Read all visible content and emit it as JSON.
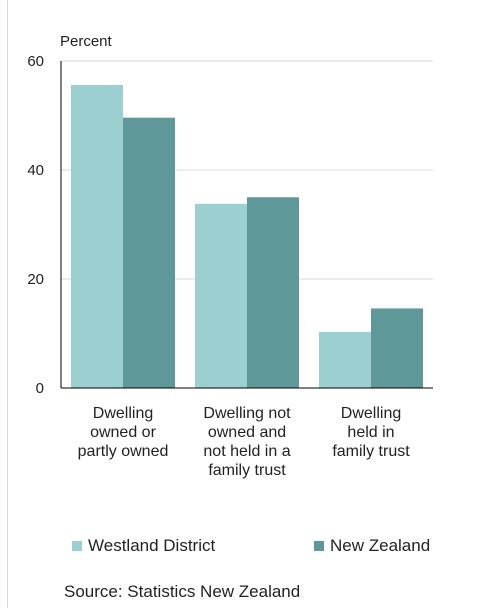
{
  "chart_data": {
    "type": "bar",
    "ylabel": "Percent",
    "ylim": [
      0,
      60
    ],
    "yticks": [
      "0",
      "20",
      "40",
      "60"
    ],
    "grid": true,
    "legend_position": "bottom",
    "categories": [
      [
        "Dwelling",
        "owned or",
        "partly owned"
      ],
      [
        "Dwelling not",
        "owned and",
        "not held in a",
        "family trust"
      ],
      [
        "Dwelling",
        "held in",
        "family trust"
      ]
    ],
    "series": [
      {
        "name": "Westland District",
        "color": "#9ccfcf",
        "values": [
          55.6,
          33.8,
          10.3
        ]
      },
      {
        "name": "New Zealand",
        "color": "#5f9898",
        "values": [
          49.6,
          35.0,
          14.6
        ]
      }
    ]
  },
  "source": "Source: Statistics New Zealand"
}
